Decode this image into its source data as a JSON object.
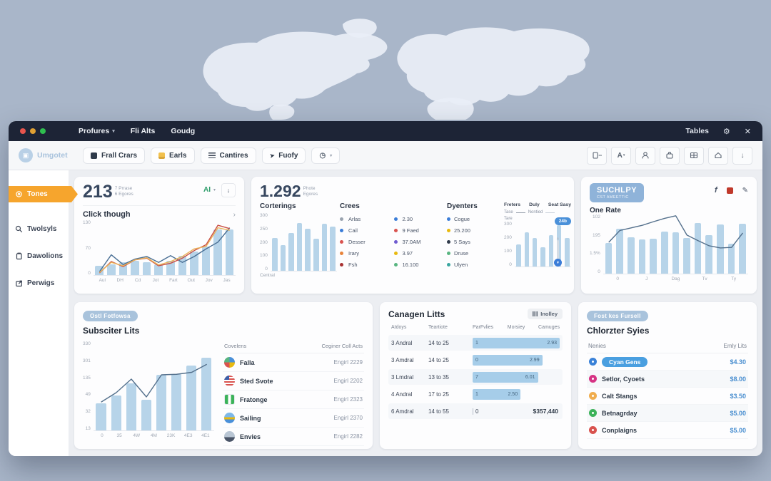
{
  "window": {
    "menu": [
      {
        "label": "Profures"
      },
      {
        "label": "Fli Alts"
      },
      {
        "label": "Goudg"
      }
    ],
    "right": {
      "tables_label": "Tables",
      "gear_glyph": "⚙",
      "close_glyph": "✕"
    }
  },
  "toolbar": {
    "logo_text": "Umgotet",
    "buttons": [
      {
        "label": "Frall Crars"
      },
      {
        "label": "Earls"
      },
      {
        "label": "Cantires"
      },
      {
        "label": "Fuofy"
      }
    ],
    "font_tool_label": "A",
    "download_glyph": "↓"
  },
  "sidebar": {
    "items": [
      {
        "label": "Tones"
      },
      {
        "label": "Twolsyls"
      },
      {
        "label": "Dawolions"
      },
      {
        "label": "Perwigs"
      }
    ]
  },
  "cards": {
    "clicks": {
      "big": "213",
      "sub1": "7 Prrase",
      "sub2": "6 Egores",
      "ai_label": "AI",
      "download_glyph": "↓",
      "section_title": "Click though",
      "chevron": "›",
      "chart": {
        "max": 130,
        "ylabels": [
          "130",
          "70",
          "0"
        ],
        "bars": [
          22,
          26,
          30,
          34,
          30,
          26,
          33,
          46,
          55,
          68,
          108,
          108
        ],
        "lines": [
          {
            "color": "#4a6f94",
            "values": [
              8,
              48,
              25,
              38,
              44,
              30,
              46,
              30,
              44,
              62,
              78,
              112
            ]
          },
          {
            "color": "#c94f45",
            "values": [
              5,
              32,
              20,
              36,
              40,
              22,
              28,
              40,
              58,
              72,
              118,
              110
            ]
          },
          {
            "color": "#eab157",
            "values": [
              6,
              30,
              22,
              36,
              41,
              24,
              32,
              44,
              62,
              68,
              112,
              106
            ]
          }
        ],
        "xlabels": [
          "Aul",
          "DH",
          "Cd",
          "Jot",
          "Fart",
          "Out",
          "Jov",
          "Jas"
        ]
      }
    },
    "overview": {
      "big": "1.292",
      "sub1": "Phote",
      "sub2": "Egores",
      "corterings": {
        "title": "Corterings",
        "footer": "Central",
        "chart": {
          "max": 300,
          "ylabels": [
            "300",
            "250",
            "200",
            "100",
            "0"
          ],
          "bars": [
            170,
            135,
            195,
            250,
            220,
            165,
            245,
            230
          ]
        }
      },
      "crees": {
        "title": "Crees",
        "rows": [
          {
            "c1": "#9aa3af",
            "t1": "Arlas",
            "c2": "#3b7dd8",
            "t2": "2.30"
          },
          {
            "c1": "#3b7dd8",
            "t1": "Cail",
            "c2": "#d9534f",
            "t2": "9 Faed"
          },
          {
            "c1": "#d9534f",
            "t1": "Desser",
            "c2": "#6f5bd0",
            "t2": "37.0AM"
          },
          {
            "c1": "#e8833a",
            "t1": "Irary",
            "c2": "#e8b90f",
            "t2": "3.97"
          },
          {
            "c1": "#a83232",
            "t1": "Fsh",
            "c2": "#58b580",
            "t2": "16.100"
          }
        ]
      },
      "dyenters": {
        "title": "Dyenters",
        "rows": [
          {
            "c": "#3b7dd8",
            "t": "Cogue"
          },
          {
            "c": "#e8b90f",
            "t": "25.200"
          },
          {
            "c": "#2f3a4a",
            "t": "5 Says"
          },
          {
            "c": "#58b580",
            "t": "Druse"
          },
          {
            "c": "#3aa6a0",
            "t": "Ulyen"
          }
        ]
      },
      "mini": {
        "tabs": [
          "Freters",
          "Duly",
          "Seat Sasy"
        ],
        "legend1": "Tase",
        "legend2": "Nontied",
        "axis_label": "Tare",
        "tooltip": "24b",
        "chart": {
          "max": 340,
          "ylabels": [
            "300",
            "200",
            "100",
            "0"
          ],
          "bars": [
            165,
            260,
            215,
            145,
            240,
            315,
            215
          ]
        }
      }
    },
    "suchlpy": {
      "badge_line1": "SUCHLPY",
      "badge_line2": "CST AMEETTIC",
      "icon_f": "f",
      "pencil_glyph": "✎",
      "title": "One Rate",
      "chart": {
        "max": 230,
        "ylabels": [
          "102",
          "195",
          "1.5%",
          "0"
        ],
        "bars": [
          118,
          175,
          140,
          132,
          135,
          163,
          160,
          138,
          198,
          150,
          192,
          115,
          195
        ],
        "lines": [
          {
            "color": "#54708c",
            "values": [
              122,
              168,
              178,
              188,
              202,
              215,
              225,
              150,
              128,
              108,
              100,
              102,
              158
            ]
          }
        ],
        "xlabels": [
          "0",
          "J",
          "Dag",
          "Tv",
          "Ty"
        ]
      }
    },
    "subscriber": {
      "badge": "Ostl Fotfowsa",
      "title": "Subsciter Lits",
      "chart": {
        "max": 330,
        "ylabels": [
          "330",
          "301",
          "135",
          "49",
          "32",
          "13"
        ],
        "bars": [
          100,
          130,
          175,
          115,
          205,
          210,
          240,
          270
        ],
        "lines": [
          {
            "color": "#54708c",
            "values": [
              105,
              140,
              190,
              124,
              206,
              208,
              215,
              245
            ]
          }
        ],
        "xlabels": [
          "0",
          "35",
          "4W",
          "4M",
          "23K",
          "4E3",
          "4E1"
        ]
      },
      "table": {
        "headers": [
          "Covelens",
          "Ceginer Coll Acts"
        ],
        "rows": [
          {
            "icon": "globe-icon",
            "name": "Falla",
            "value": "Engirl 2229"
          },
          {
            "icon": "us-flag-icon",
            "name": "Sted Svote",
            "value": "Engirl 2202"
          },
          {
            "icon": "green-flag-icon",
            "name": "Fratonge",
            "value": "Engirl 2323"
          },
          {
            "icon": "waves-icon",
            "name": "Sailing",
            "value": "Engirl 2370"
          },
          {
            "icon": "earth-icon",
            "name": "Envies",
            "value": "Engirl 2282"
          }
        ]
      }
    },
    "campaigns": {
      "title": "Canagen Litts",
      "button_label": "Inolley",
      "headers": [
        "Atdoys",
        "Teartiote",
        "ParFvlies",
        "Morsiey",
        "Camuges"
      ],
      "rows": [
        {
          "c1": "3 Andral",
          "c2": "14 to 25",
          "bar": "100%",
          "left": "1",
          "right": "2.93",
          "left_out": "",
          "far": ""
        },
        {
          "c1": "3 Amdral",
          "c2": "14 to 25",
          "bar": "80%",
          "left": "0",
          "right": "2.99",
          "left_out": "",
          "far": ""
        },
        {
          "c1": "3 Lmdral",
          "c2": "13 to 35",
          "bar": "75%",
          "left": "7",
          "right": "6.01",
          "left_out": "",
          "far": ""
        },
        {
          "c1": "4 Andral",
          "c2": "17 to 25",
          "bar": "55%",
          "left": "1",
          "right": "2.50",
          "left_out": "",
          "far": ""
        },
        {
          "c1": "6 Amdral",
          "c2": "14 to 55",
          "bar": "0%",
          "left": "",
          "right": "",
          "left_out": "0",
          "far": "$357,440"
        }
      ]
    },
    "charter": {
      "badge": "Fost kes Fursell",
      "title": "Chlorzter Syies",
      "headers": [
        "Nenies",
        "Emly Lits"
      ],
      "rows": [
        {
          "color": "#3b82d8",
          "name": "Cyan Gens",
          "value": "$4.30"
        },
        {
          "color": "#d63384",
          "name": "Setlor, Cyoets",
          "value": "$8.00"
        },
        {
          "color": "#f0ad4e",
          "name": "Calt Stangs",
          "value": "$3.50"
        },
        {
          "color": "#3cb35a",
          "name": "Betnagrday",
          "value": "$5.00"
        },
        {
          "color": "#d9534f",
          "name": "Conplaigns",
          "value": "$5.00"
        }
      ]
    }
  }
}
